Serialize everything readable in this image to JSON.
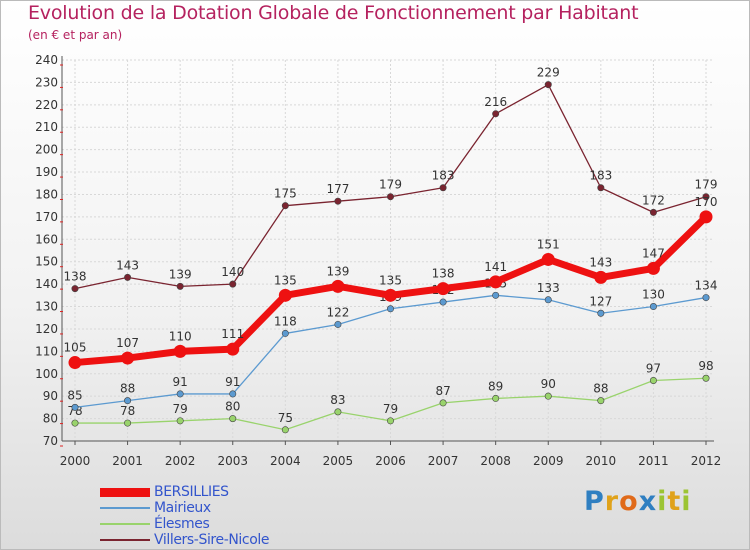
{
  "header": {
    "title": "Evolution de la Dotation Globale de Fonctionnement par Habitant",
    "subtitle": "(en € et par an)"
  },
  "logo": {
    "letters": [
      "P",
      "r",
      "o",
      "x",
      "i",
      "t",
      "i"
    ],
    "colors": [
      "#2f7fc1",
      "#e0a21a",
      "#e06a1a",
      "#2f7fc1",
      "#9cc433",
      "#e0a21a",
      "#9cc433"
    ]
  },
  "chart_data": {
    "type": "line",
    "title": "Evolution de la Dotation Globale de Fonctionnement par Habitant",
    "subtitle": "(en € et par an)",
    "xlabel": "",
    "ylabel": "",
    "categories": [
      "2000",
      "2001",
      "2002",
      "2003",
      "2004",
      "2005",
      "2006",
      "2007",
      "2008",
      "2009",
      "2010",
      "2011",
      "2012"
    ],
    "ylim": [
      70,
      240
    ],
    "yticks": [
      70,
      80,
      90,
      100,
      110,
      120,
      130,
      140,
      150,
      160,
      170,
      180,
      190,
      200,
      210,
      220,
      230,
      240
    ],
    "grid": true,
    "legend_position": "bottom-left",
    "series": [
      {
        "name": "Villers-Sire-Nicole",
        "color": "#7a2430",
        "values": [
          138,
          143,
          139,
          140,
          175,
          177,
          179,
          183,
          216,
          229,
          183,
          172,
          179
        ]
      },
      {
        "name": "Élesmes",
        "color": "#99d36c",
        "values": [
          78,
          78,
          79,
          80,
          75,
          83,
          79,
          87,
          89,
          90,
          88,
          97,
          98
        ]
      },
      {
        "name": "Mairieux",
        "color": "#5c9ad0",
        "values": [
          85,
          88,
          91,
          91,
          118,
          122,
          129,
          132,
          135,
          133,
          127,
          130,
          134
        ]
      },
      {
        "name": "BERSILLIES",
        "color": "#ee1111",
        "values": [
          105,
          107,
          110,
          111,
          135,
          139,
          135,
          138,
          141,
          151,
          143,
          147,
          170
        ]
      }
    ],
    "legend": [
      {
        "name": "BERSILLIES",
        "color": "#ee1111"
      },
      {
        "name": "Mairieux",
        "color": "#5c9ad0"
      },
      {
        "name": "Élesmes",
        "color": "#99d36c"
      },
      {
        "name": "Villers-Sire-Nicole",
        "color": "#7a2430"
      }
    ]
  }
}
